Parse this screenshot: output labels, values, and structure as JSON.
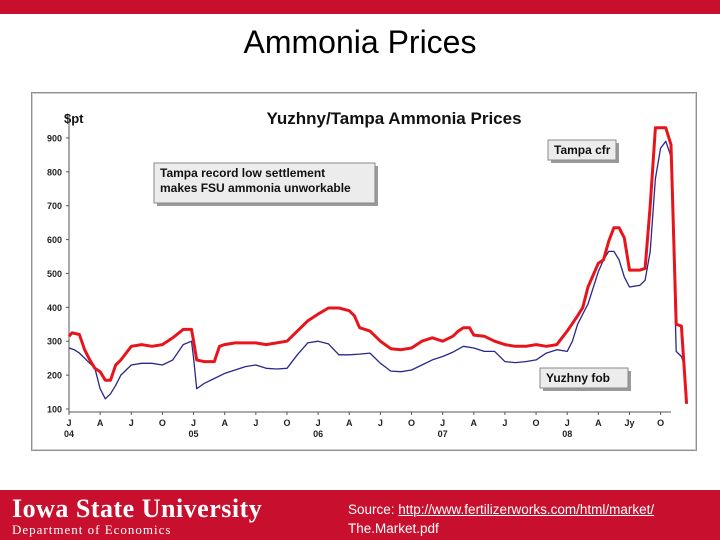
{
  "slide": {
    "title": "Ammonia Prices"
  },
  "footer": {
    "university": "Iowa State University",
    "department": "Department of Economics",
    "source_prefix": "Source: ",
    "source_link": "http://www.fertilizerworks.com/html/market/",
    "source_file": "The.Market.pdf"
  },
  "chart_data": {
    "type": "line",
    "title": "Yuzhny/Tampa Ammonia Prices",
    "ylabel": "$pt",
    "ylim": [
      100,
      950
    ],
    "yticks": [
      100,
      200,
      300,
      400,
      500,
      600,
      700,
      800,
      900
    ],
    "xlim": [
      0,
      58
    ],
    "x_ticks": [
      {
        "x": 0,
        "label": "J",
        "year": "04"
      },
      {
        "x": 3,
        "label": "A",
        "year": ""
      },
      {
        "x": 6,
        "label": "J",
        "year": ""
      },
      {
        "x": 9,
        "label": "O",
        "year": ""
      },
      {
        "x": 12,
        "label": "J",
        "year": "05"
      },
      {
        "x": 15,
        "label": "A",
        "year": ""
      },
      {
        "x": 18,
        "label": "J",
        "year": ""
      },
      {
        "x": 21,
        "label": "O",
        "year": ""
      },
      {
        "x": 24,
        "label": "J",
        "year": "06"
      },
      {
        "x": 27,
        "label": "A",
        "year": ""
      },
      {
        "x": 30,
        "label": "J",
        "year": ""
      },
      {
        "x": 33,
        "label": "O",
        "year": ""
      },
      {
        "x": 36,
        "label": "J",
        "year": "07"
      },
      {
        "x": 39,
        "label": "A",
        "year": ""
      },
      {
        "x": 42,
        "label": "J",
        "year": ""
      },
      {
        "x": 45,
        "label": "O",
        "year": ""
      },
      {
        "x": 48,
        "label": "J",
        "year": "08"
      },
      {
        "x": 51,
        "label": "A",
        "year": ""
      },
      {
        "x": 54,
        "label": "Jy",
        "year": ""
      },
      {
        "x": 57,
        "label": "O",
        "year": ""
      }
    ],
    "series": [
      {
        "name": "Tampa cfr",
        "color": "#e8141c",
        "points": [
          [
            0,
            315
          ],
          [
            0.3,
            325
          ],
          [
            1,
            320
          ],
          [
            1.5,
            275
          ],
          [
            2,
            245
          ],
          [
            2.5,
            220
          ],
          [
            3,
            210
          ],
          [
            3.5,
            185
          ],
          [
            4,
            185
          ],
          [
            4.5,
            230
          ],
          [
            5,
            245
          ],
          [
            5.5,
            265
          ],
          [
            6,
            285
          ],
          [
            7,
            290
          ],
          [
            8,
            285
          ],
          [
            9,
            290
          ],
          [
            10,
            310
          ],
          [
            11,
            335
          ],
          [
            11.8,
            335
          ],
          [
            12,
            300
          ],
          [
            12.3,
            245
          ],
          [
            13,
            240
          ],
          [
            14,
            240
          ],
          [
            14.5,
            285
          ],
          [
            15,
            290
          ],
          [
            16,
            295
          ],
          [
            17,
            295
          ],
          [
            18,
            295
          ],
          [
            19,
            290
          ],
          [
            20,
            295
          ],
          [
            21,
            300
          ],
          [
            22,
            330
          ],
          [
            23,
            360
          ],
          [
            24,
            380
          ],
          [
            25,
            398
          ],
          [
            26,
            398
          ],
          [
            27,
            390
          ],
          [
            27.5,
            375
          ],
          [
            28,
            340
          ],
          [
            29,
            330
          ],
          [
            30,
            300
          ],
          [
            31,
            278
          ],
          [
            32,
            275
          ],
          [
            33,
            280
          ],
          [
            34,
            300
          ],
          [
            35,
            310
          ],
          [
            36,
            300
          ],
          [
            37,
            315
          ],
          [
            37.5,
            330
          ],
          [
            38,
            340
          ],
          [
            38.6,
            340
          ],
          [
            39,
            318
          ],
          [
            40,
            315
          ],
          [
            41,
            300
          ],
          [
            42,
            290
          ],
          [
            43,
            285
          ],
          [
            44,
            285
          ],
          [
            45,
            290
          ],
          [
            46,
            285
          ],
          [
            47,
            290
          ],
          [
            48,
            330
          ],
          [
            49,
            375
          ],
          [
            49.5,
            400
          ],
          [
            50,
            460
          ],
          [
            51,
            530
          ],
          [
            51.5,
            540
          ],
          [
            52,
            595
          ],
          [
            52.5,
            635
          ],
          [
            53,
            635
          ],
          [
            53.5,
            605
          ],
          [
            54,
            510
          ],
          [
            55,
            510
          ],
          [
            55.5,
            515
          ],
          [
            56,
            700
          ],
          [
            56.5,
            930
          ],
          [
            57.5,
            930
          ],
          [
            58,
            880
          ],
          [
            58.5,
            350
          ],
          [
            59,
            345
          ],
          [
            59.5,
            115
          ]
        ]
      },
      {
        "name": "Yuzhny fob",
        "color": "#28288a",
        "points": [
          [
            0,
            280
          ],
          [
            0.5,
            275
          ],
          [
            1,
            265
          ],
          [
            1.5,
            250
          ],
          [
            2,
            235
          ],
          [
            2.5,
            220
          ],
          [
            3,
            160
          ],
          [
            3.5,
            130
          ],
          [
            4,
            145
          ],
          [
            4.5,
            170
          ],
          [
            5,
            200
          ],
          [
            6,
            230
          ],
          [
            7,
            235
          ],
          [
            8,
            235
          ],
          [
            9,
            230
          ],
          [
            10,
            245
          ],
          [
            11,
            290
          ],
          [
            11.8,
            300
          ],
          [
            12,
            250
          ],
          [
            12.3,
            160
          ],
          [
            13,
            175
          ],
          [
            14,
            190
          ],
          [
            15,
            205
          ],
          [
            16,
            215
          ],
          [
            17,
            225
          ],
          [
            18,
            230
          ],
          [
            19,
            220
          ],
          [
            20,
            218
          ],
          [
            21,
            220
          ],
          [
            22,
            260
          ],
          [
            23,
            295
          ],
          [
            24,
            300
          ],
          [
            25,
            292
          ],
          [
            26,
            260
          ],
          [
            27,
            260
          ],
          [
            28,
            262
          ],
          [
            29,
            265
          ],
          [
            30,
            235
          ],
          [
            31,
            212
          ],
          [
            32,
            210
          ],
          [
            33,
            215
          ],
          [
            34,
            230
          ],
          [
            35,
            245
          ],
          [
            36,
            255
          ],
          [
            37,
            268
          ],
          [
            38,
            285
          ],
          [
            39,
            280
          ],
          [
            40,
            270
          ],
          [
            41,
            270
          ],
          [
            42,
            240
          ],
          [
            43,
            237
          ],
          [
            44,
            240
          ],
          [
            45,
            245
          ],
          [
            46,
            265
          ],
          [
            47,
            275
          ],
          [
            48,
            270
          ],
          [
            48.5,
            300
          ],
          [
            49,
            350
          ],
          [
            49.5,
            380
          ],
          [
            50,
            410
          ],
          [
            51,
            505
          ],
          [
            51.5,
            540
          ],
          [
            52,
            565
          ],
          [
            52.5,
            565
          ],
          [
            53,
            540
          ],
          [
            53.5,
            490
          ],
          [
            54,
            460
          ],
          [
            55,
            465
          ],
          [
            55.5,
            480
          ],
          [
            56,
            565
          ],
          [
            56.5,
            780
          ],
          [
            57,
            870
          ],
          [
            57.5,
            890
          ],
          [
            58,
            845
          ],
          [
            58.5,
            270
          ],
          [
            59,
            255
          ],
          [
            59.3,
            230
          ]
        ]
      }
    ],
    "annotations": [
      {
        "text": [
          "Tampa record low settlement",
          "makes FSU ammonia unworkable"
        ]
      },
      {
        "text": [
          "Tampa cfr"
        ]
      },
      {
        "text": [
          "Yuzhny fob"
        ]
      }
    ]
  }
}
